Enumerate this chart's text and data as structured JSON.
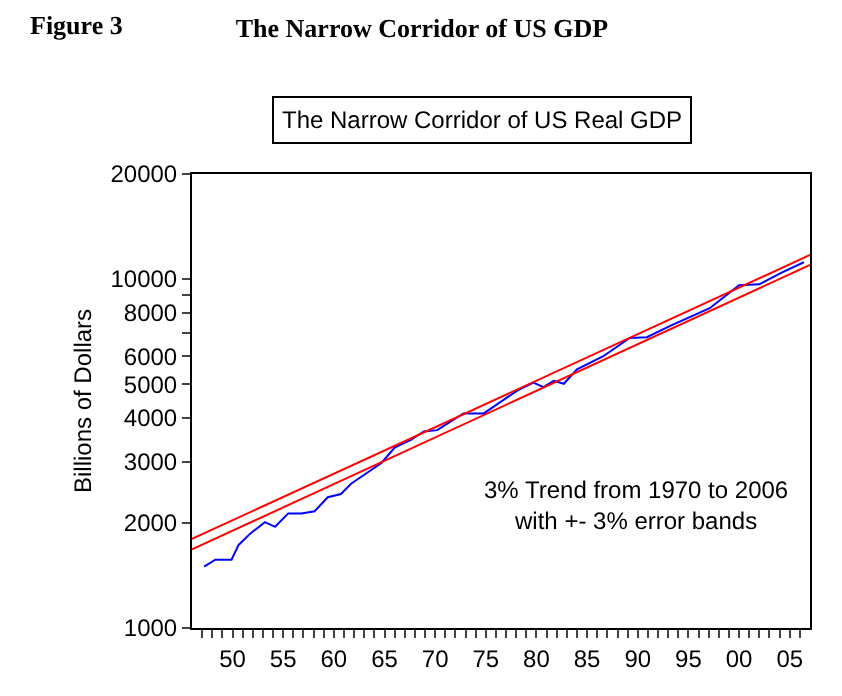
{
  "chart_data": {
    "type": "line",
    "title": "The Narrow Corridor of US GDP",
    "subtitle": "The Narrow Corridor of US Real GDP",
    "ylabel": "Billions of Dollars",
    "annotations": [
      "Figure 3",
      "3% Trend from 1970 to 2006\nwith +- 3% error bands"
    ],
    "log": "y",
    "marker": "none",
    "line_style": "solid",
    "xlim": [
      1946,
      2007
    ],
    "xticks": [
      {
        "value": 1947,
        "label": null
      },
      {
        "value": 1948,
        "label": null
      },
      {
        "value": 1949,
        "label": null
      },
      {
        "value": 1950,
        "label": "50"
      },
      {
        "value": 1951,
        "label": null
      },
      {
        "value": 1952,
        "label": null
      },
      {
        "value": 1953,
        "label": null
      },
      {
        "value": 1954,
        "label": null
      },
      {
        "value": 1955,
        "label": "55"
      },
      {
        "value": 1956,
        "label": null
      },
      {
        "value": 1957,
        "label": null
      },
      {
        "value": 1958,
        "label": null
      },
      {
        "value": 1959,
        "label": null
      },
      {
        "value": 1960,
        "label": "60"
      },
      {
        "value": 1961,
        "label": null
      },
      {
        "value": 1962,
        "label": null
      },
      {
        "value": 1963,
        "label": null
      },
      {
        "value": 1964,
        "label": null
      },
      {
        "value": 1965,
        "label": "65"
      },
      {
        "value": 1966,
        "label": null
      },
      {
        "value": 1967,
        "label": null
      },
      {
        "value": 1968,
        "label": null
      },
      {
        "value": 1969,
        "label": null
      },
      {
        "value": 1970,
        "label": "70"
      },
      {
        "value": 1971,
        "label": null
      },
      {
        "value": 1972,
        "label": null
      },
      {
        "value": 1973,
        "label": null
      },
      {
        "value": 1974,
        "label": null
      },
      {
        "value": 1975,
        "label": "75"
      },
      {
        "value": 1976,
        "label": null
      },
      {
        "value": 1977,
        "label": null
      },
      {
        "value": 1978,
        "label": null
      },
      {
        "value": 1979,
        "label": null
      },
      {
        "value": 1980,
        "label": "80"
      },
      {
        "value": 1981,
        "label": null
      },
      {
        "value": 1982,
        "label": null
      },
      {
        "value": 1983,
        "label": null
      },
      {
        "value": 1984,
        "label": null
      },
      {
        "value": 1985,
        "label": "85"
      },
      {
        "value": 1986,
        "label": null
      },
      {
        "value": 1987,
        "label": null
      },
      {
        "value": 1988,
        "label": null
      },
      {
        "value": 1989,
        "label": null
      },
      {
        "value": 1990,
        "label": "90"
      },
      {
        "value": 1991,
        "label": null
      },
      {
        "value": 1992,
        "label": null
      },
      {
        "value": 1993,
        "label": null
      },
      {
        "value": 1994,
        "label": null
      },
      {
        "value": 1995,
        "label": "95"
      },
      {
        "value": 1996,
        "label": null
      },
      {
        "value": 1997,
        "label": null
      },
      {
        "value": 1998,
        "label": null
      },
      {
        "value": 1999,
        "label": null
      },
      {
        "value": 2000,
        "label": "00"
      },
      {
        "value": 2001,
        "label": null
      },
      {
        "value": 2002,
        "label": null
      },
      {
        "value": 2003,
        "label": null
      },
      {
        "value": 2004,
        "label": null
      },
      {
        "value": 2005,
        "label": "05"
      },
      {
        "value": 2006,
        "label": null
      }
    ],
    "ylim": [
      1000,
      20000
    ],
    "yticks": [
      1000,
      2000,
      3000,
      4000,
      5000,
      6000,
      {
        "value": 7000,
        "label": null
      },
      8000,
      {
        "value": 9000,
        "label": null
      },
      10000,
      20000
    ],
    "series": [
      {
        "color": "#0000ff",
        "x": [
          1947.2,
          1948.3,
          1949.9,
          1950.6,
          1951.8,
          1953.2,
          1954.2,
          1955.5,
          1956.8,
          1958.1,
          1959.4,
          1960.7,
          1961.7,
          1963.0,
          1964.7,
          1966.0,
          1967.6,
          1968.9,
          1970.2,
          1972.8,
          1974.8,
          1978.1,
          1979.7,
          1980.7,
          1981.7,
          1982.7,
          1984.0,
          1986.6,
          1989.2,
          1990.9,
          1993.2,
          1997.1,
          2000.0,
          2002.0,
          2004.3,
          2006.4
        ],
        "values": [
          1500,
          1570,
          1570,
          1730,
          1870,
          2010,
          1950,
          2130,
          2130,
          2160,
          2370,
          2420,
          2590,
          2750,
          2970,
          3290,
          3460,
          3660,
          3690,
          4120,
          4120,
          4790,
          5050,
          4900,
          5110,
          5010,
          5510,
          6010,
          6780,
          6810,
          7340,
          8250,
          9600,
          9660,
          10470,
          11170
        ]
      },
      {
        "type": "line",
        "color": "#ff0000",
        "x": [
          1946,
          2007
        ],
        "values": [
          1800,
          11720
        ]
      },
      {
        "type": "line",
        "color": "#ff0000",
        "x": [
          1946,
          2007
        ],
        "values": [
          1680,
          10980
        ]
      }
    ]
  }
}
